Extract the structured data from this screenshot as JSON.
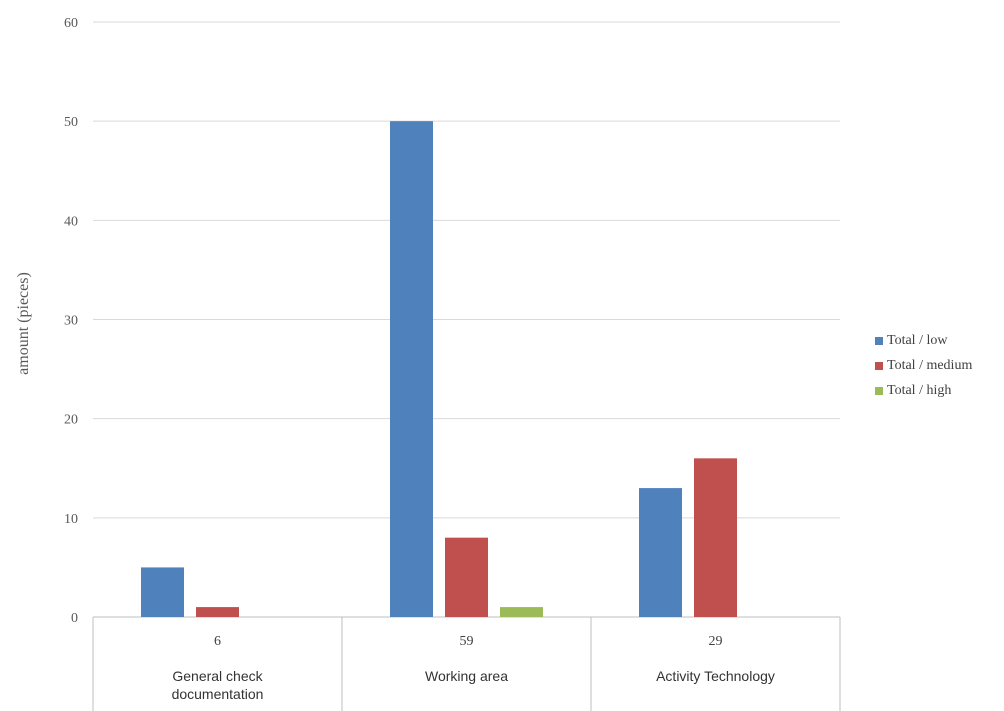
{
  "chart_data": {
    "type": "bar",
    "ylabel": "amount  (pieces)",
    "ylim": [
      0,
      60
    ],
    "yticks": [
      "0",
      "10",
      "20",
      "30",
      "40",
      "50",
      "60"
    ],
    "grid": true,
    "legend_position": "right",
    "categories": [
      {
        "name": "General check documentation",
        "name_lines": [
          "General check",
          "documentation"
        ],
        "total": "6"
      },
      {
        "name": "Working area",
        "name_lines": [
          "Working area"
        ],
        "total": "59"
      },
      {
        "name": "Activity Technology",
        "name_lines": [
          "Activity Technology"
        ],
        "total": "29"
      }
    ],
    "series": [
      {
        "name": "Total / low",
        "color": "#4f81bd",
        "values": [
          5,
          50,
          13
        ]
      },
      {
        "name": "Total / medium",
        "color": "#c0504d",
        "values": [
          1,
          8,
          16
        ]
      },
      {
        "name": "Total / high",
        "color": "#9bbb59",
        "values": [
          0,
          1,
          0
        ]
      }
    ]
  }
}
